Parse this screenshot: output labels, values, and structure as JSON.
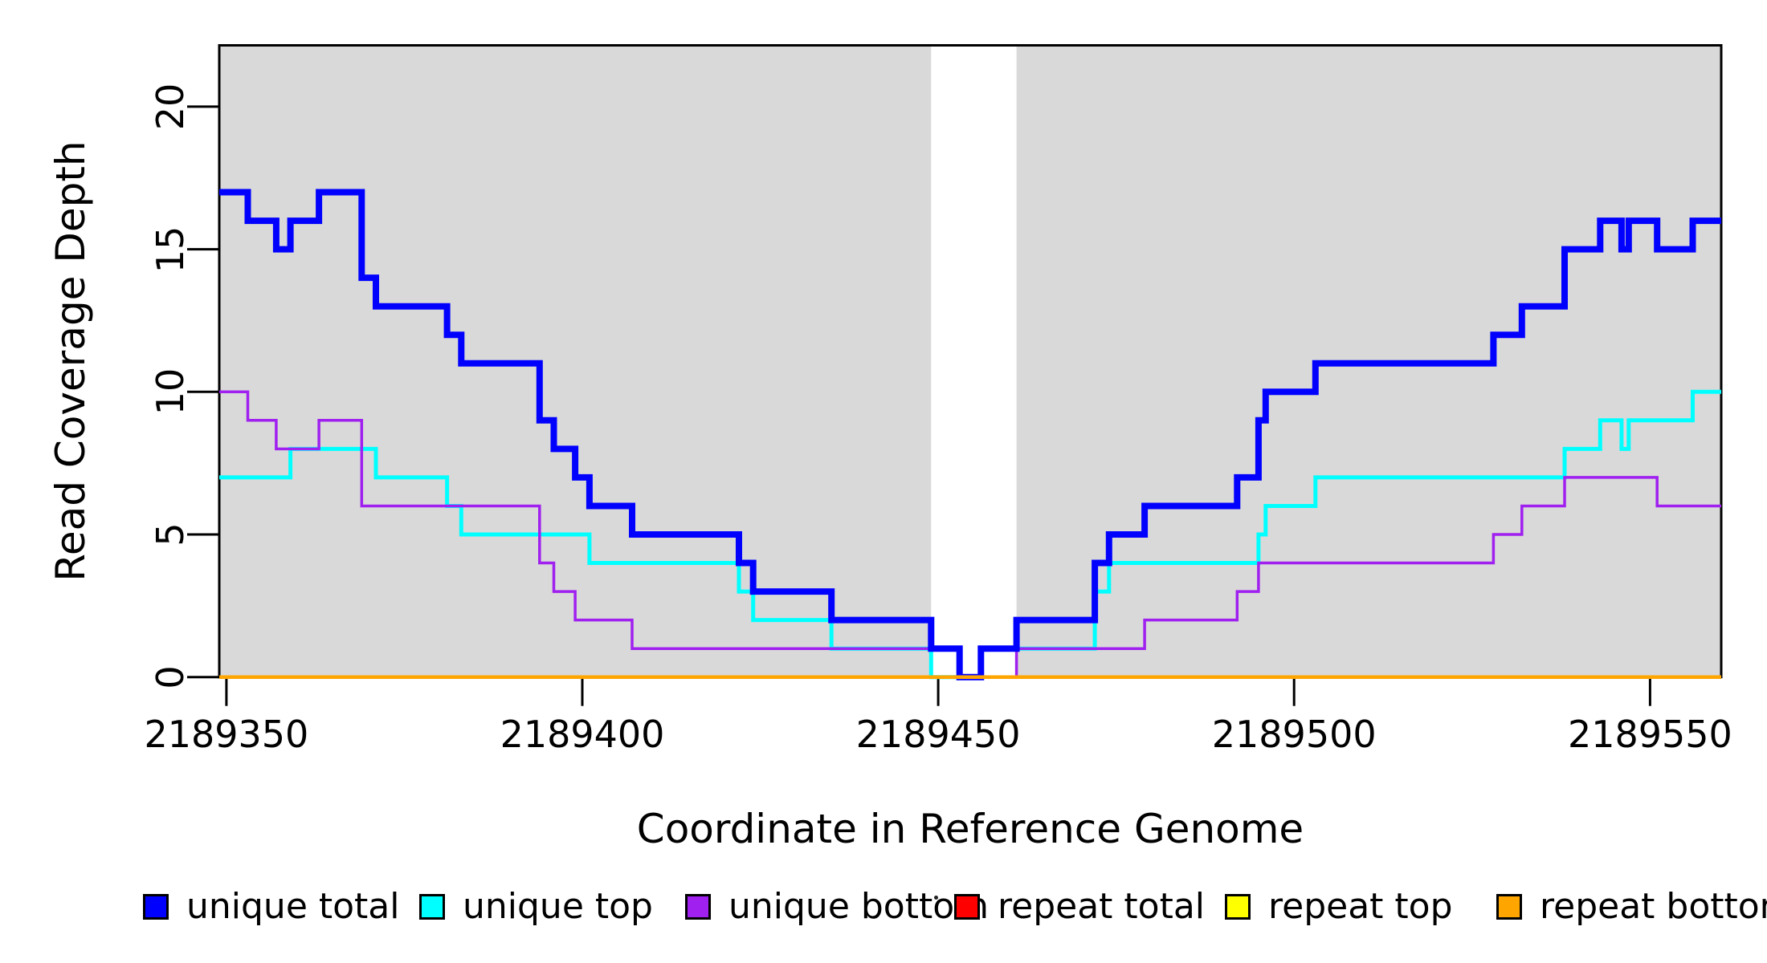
{
  "axes": {
    "x": {
      "label": "Coordinate in Reference Genome",
      "tick_labels": [
        "2189350",
        "2189400",
        "2189450",
        "2189500",
        "2189550"
      ]
    },
    "y": {
      "label": "Read Coverage Depth",
      "tick_labels": [
        "0",
        "5",
        "10",
        "15",
        "20"
      ]
    }
  },
  "legend": {
    "items": [
      {
        "label": "unique total",
        "color": "#0000FF"
      },
      {
        "label": "unique top",
        "color": "#00FFFF"
      },
      {
        "label": "unique bottom",
        "color": "#A020F0"
      },
      {
        "label": "repeat total",
        "color": "#FF0000"
      },
      {
        "label": "repeat top",
        "color": "#FFFF00"
      },
      {
        "label": "repeat bottom",
        "color": "#FFA500"
      }
    ]
  },
  "colors": {
    "shaded_region": "#D9D9D9",
    "gap_region": "#FFFFFF",
    "frame": "#000000"
  },
  "chart_data": {
    "type": "line",
    "subtype": "step-after",
    "title": "",
    "xlabel": "Coordinate in Reference Genome",
    "ylabel": "Read Coverage Depth",
    "xlim": [
      2189349,
      2189560
    ],
    "ylim": [
      0,
      22.15
    ],
    "x_ticks": [
      2189350,
      2189400,
      2189450,
      2189500,
      2189550
    ],
    "y_ticks": [
      0,
      5,
      10,
      15,
      20
    ],
    "grid": false,
    "legend_position": "bottom",
    "background_bands": [
      {
        "name": "shaded-left",
        "from": 2189349,
        "to": 2189449,
        "color": "#D9D9D9"
      },
      {
        "name": "shaded-right",
        "from": 2189461,
        "to": 2189560,
        "color": "#D9D9D9"
      }
    ],
    "gap_band": {
      "from": 2189449,
      "to": 2189461,
      "color": "#FFFFFF"
    },
    "series": [
      {
        "name": "repeat total",
        "color": "#FF0000",
        "width": 4.5,
        "points": [
          [
            2189349,
            0
          ]
        ]
      },
      {
        "name": "repeat top",
        "color": "#FFFF00",
        "width": 4.5,
        "points": [
          [
            2189349,
            0
          ]
        ]
      },
      {
        "name": "unique top",
        "color": "#00FFFF",
        "width": 5,
        "points": [
          [
            2189349,
            7
          ],
          [
            2189359,
            8
          ],
          [
            2189371,
            7
          ],
          [
            2189381,
            6
          ],
          [
            2189383,
            5
          ],
          [
            2189401,
            4
          ],
          [
            2189422,
            3
          ],
          [
            2189424,
            2
          ],
          [
            2189435,
            1
          ],
          [
            2189449,
            0
          ],
          [
            2189456,
            1
          ],
          [
            2189472,
            3
          ],
          [
            2189474,
            4
          ],
          [
            2189495,
            5
          ],
          [
            2189496,
            6
          ],
          [
            2189503,
            7
          ],
          [
            2189538,
            8
          ],
          [
            2189543,
            9
          ],
          [
            2189546,
            8
          ],
          [
            2189547,
            9
          ],
          [
            2189556,
            10
          ]
        ]
      },
      {
        "name": "unique bottom",
        "color": "#A020F0",
        "width": 3.5,
        "points": [
          [
            2189349,
            10
          ],
          [
            2189353,
            9
          ],
          [
            2189357,
            8
          ],
          [
            2189363,
            9
          ],
          [
            2189369,
            6
          ],
          [
            2189394,
            4
          ],
          [
            2189396,
            3
          ],
          [
            2189399,
            2
          ],
          [
            2189407,
            1
          ],
          [
            2189453,
            0
          ],
          [
            2189461,
            1
          ],
          [
            2189479,
            2
          ],
          [
            2189492,
            3
          ],
          [
            2189495,
            4
          ],
          [
            2189528,
            5
          ],
          [
            2189532,
            6
          ],
          [
            2189538,
            7
          ],
          [
            2189551,
            6
          ]
        ]
      },
      {
        "name": "unique total",
        "color": "#0000FF",
        "width": 8,
        "points": [
          [
            2189349,
            17
          ],
          [
            2189353,
            16
          ],
          [
            2189357,
            15
          ],
          [
            2189359,
            16
          ],
          [
            2189363,
            17
          ],
          [
            2189369,
            14
          ],
          [
            2189371,
            13
          ],
          [
            2189381,
            12
          ],
          [
            2189383,
            11
          ],
          [
            2189394,
            9
          ],
          [
            2189396,
            8
          ],
          [
            2189399,
            7
          ],
          [
            2189401,
            6
          ],
          [
            2189407,
            5
          ],
          [
            2189422,
            4
          ],
          [
            2189424,
            3
          ],
          [
            2189435,
            2
          ],
          [
            2189449,
            1
          ],
          [
            2189453,
            0
          ],
          [
            2189456,
            1
          ],
          [
            2189461,
            2
          ],
          [
            2189472,
            4
          ],
          [
            2189474,
            5
          ],
          [
            2189479,
            6
          ],
          [
            2189492,
            7
          ],
          [
            2189495,
            9
          ],
          [
            2189496,
            10
          ],
          [
            2189503,
            11
          ],
          [
            2189528,
            12
          ],
          [
            2189532,
            13
          ],
          [
            2189538,
            15
          ],
          [
            2189543,
            16
          ],
          [
            2189546,
            15
          ],
          [
            2189547,
            16
          ],
          [
            2189551,
            15
          ],
          [
            2189556,
            16
          ]
        ]
      },
      {
        "name": "repeat bottom",
        "color": "#FFA500",
        "width": 4.5,
        "points": [
          [
            2189349,
            0
          ]
        ]
      }
    ]
  }
}
